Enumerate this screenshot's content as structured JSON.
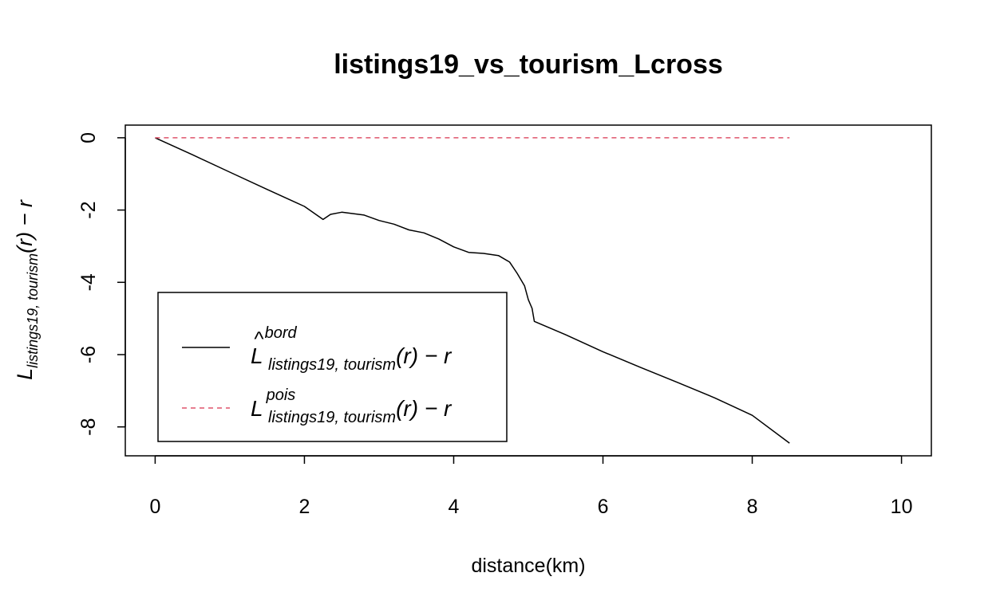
{
  "chart_data": {
    "type": "line",
    "title": "listings19_vs_tourism_Lcross",
    "xlabel": "distance(km)",
    "ylabel": {
      "base": "L",
      "subscript": "listings19, tourism",
      "suffix": "(r) − r"
    },
    "xlim": [
      -0.4,
      10.4
    ],
    "ylim": [
      -8.8,
      0.35
    ],
    "xticks": [
      "0",
      "2",
      "4",
      "6",
      "8",
      "10"
    ],
    "yticks": [
      "0",
      "-2",
      "-4",
      "-6",
      "-8"
    ],
    "xtick_values": [
      0,
      2,
      4,
      6,
      8,
      10
    ],
    "ytick_values": [
      0,
      -2,
      -4,
      -6,
      -8
    ],
    "grid": false,
    "legend_position": "bottom-left",
    "series": [
      {
        "legend_base": "L",
        "legend_hat": "^",
        "legend_superscript": "bord",
        "legend_subscript": "listings19, tourism",
        "legend_suffix": "(r) − r",
        "color": "#000000",
        "dash": "solid",
        "points": [
          [
            0,
            0
          ],
          [
            0.5,
            -0.47
          ],
          [
            1.0,
            -0.95
          ],
          [
            1.5,
            -1.43
          ],
          [
            2.0,
            -1.9
          ],
          [
            2.25,
            -2.26
          ],
          [
            2.35,
            -2.12
          ],
          [
            2.5,
            -2.06
          ],
          [
            2.8,
            -2.14
          ],
          [
            3.0,
            -2.29
          ],
          [
            3.2,
            -2.39
          ],
          [
            3.4,
            -2.55
          ],
          [
            3.6,
            -2.63
          ],
          [
            3.8,
            -2.8
          ],
          [
            4.0,
            -3.02
          ],
          [
            4.2,
            -3.17
          ],
          [
            4.4,
            -3.2
          ],
          [
            4.6,
            -3.26
          ],
          [
            4.75,
            -3.44
          ],
          [
            4.85,
            -3.75
          ],
          [
            4.95,
            -4.1
          ],
          [
            5.0,
            -4.48
          ],
          [
            5.05,
            -4.72
          ],
          [
            5.08,
            -5.08
          ],
          [
            5.5,
            -5.45
          ],
          [
            6.0,
            -5.92
          ],
          [
            6.5,
            -6.35
          ],
          [
            7.0,
            -6.77
          ],
          [
            7.5,
            -7.2
          ],
          [
            8.0,
            -7.68
          ],
          [
            8.5,
            -8.45
          ]
        ]
      },
      {
        "legend_base": "L",
        "legend_hat": "",
        "legend_superscript": "pois",
        "legend_subscript": "listings19, tourism",
        "legend_suffix": "(r) − r",
        "color": "#df536b",
        "dash": "dashed",
        "points": [
          [
            0,
            0
          ],
          [
            8.5,
            0
          ]
        ]
      }
    ]
  }
}
